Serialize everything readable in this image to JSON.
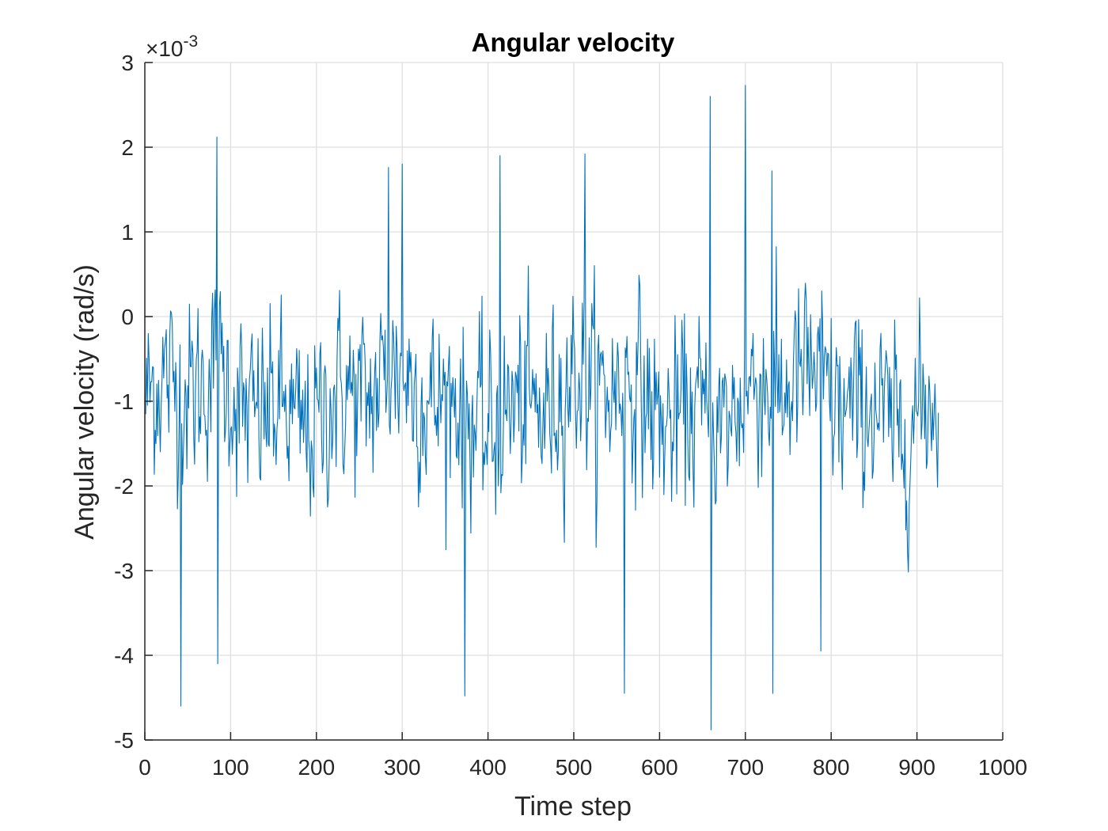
{
  "chart_data": {
    "type": "line",
    "title": "Angular velocity",
    "xlabel": "Time step",
    "ylabel": "Angular velocity (rad/s)",
    "y_exponent": {
      "base": "10",
      "power": "-3"
    },
    "xlim": [
      0,
      1000
    ],
    "ylim": [
      -5,
      3
    ],
    "xticks": [
      0,
      100,
      200,
      300,
      400,
      500,
      600,
      700,
      800,
      900,
      1000
    ],
    "yticks": [
      -5,
      -4,
      -3,
      -2,
      -1,
      0,
      1,
      2,
      3
    ],
    "grid": true,
    "line_color": "#0072BD",
    "x_range": [
      1,
      925
    ],
    "series_description": "Noisy signal of 925 samples centered near -1 (x10^-3), typical range -2.5 to 0.5, occasional spikes",
    "notable_points": [
      {
        "x": 42,
        "y": -4.6
      },
      {
        "x": 84,
        "y": 2.12
      },
      {
        "x": 85,
        "y": -4.1
      },
      {
        "x": 373,
        "y": -4.48
      },
      {
        "x": 559,
        "y": -4.45
      },
      {
        "x": 659,
        "y": 2.6
      },
      {
        "x": 660,
        "y": -4.88
      },
      {
        "x": 700,
        "y": 2.73
      },
      {
        "x": 731,
        "y": 1.72
      },
      {
        "x": 732,
        "y": -4.45
      },
      {
        "x": 788,
        "y": -3.95
      },
      {
        "x": 513,
        "y": 1.92
      },
      {
        "x": 414,
        "y": 1.9
      },
      {
        "x": 300,
        "y": 1.8
      },
      {
        "x": 284,
        "y": 1.76
      }
    ]
  }
}
